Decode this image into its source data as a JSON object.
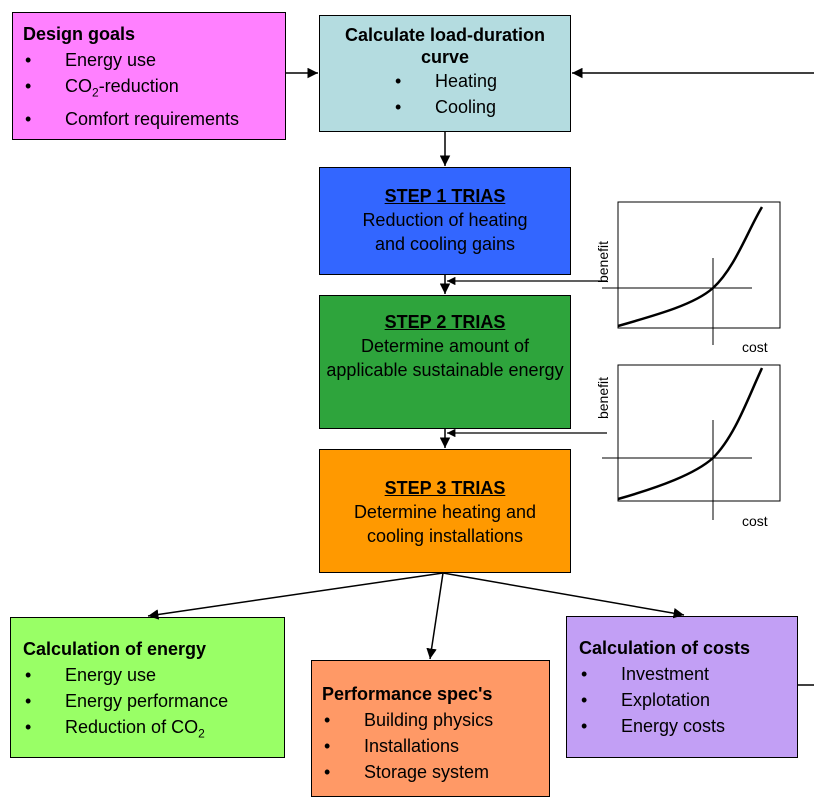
{
  "design_goals": {
    "title": "Design goals",
    "items": [
      "Energy use",
      "CO2-reduction",
      "Comfort requirements"
    ]
  },
  "load_duration": {
    "title": "Calculate load-duration curve",
    "items": [
      "Heating",
      "Cooling"
    ]
  },
  "step1": {
    "title": "STEP 1 TRIAS",
    "text": "Reduction of heating and cooling gains"
  },
  "step2": {
    "title": "STEP 2 TRIAS",
    "text": "Determine amount of applicable sustainable energy"
  },
  "step3": {
    "title": "STEP 3 TRIAS",
    "text": "Determine heating and cooling installations"
  },
  "calc_energy": {
    "title": "Calculation of energy",
    "items": [
      "Energy use",
      "Energy performance",
      "Reduction of CO2"
    ]
  },
  "performance_specs": {
    "title": "Performance spec's",
    "items": [
      "Building physics",
      "Installations",
      "Storage system"
    ]
  },
  "calc_costs": {
    "title": "Calculation of costs",
    "items": [
      "Investment",
      "Explotation",
      "Energy costs"
    ]
  },
  "graphs": {
    "y_label": "benefit",
    "x_label": "cost"
  },
  "colors": {
    "design_goals": "#ff80ff",
    "load_duration": "#b4dce0",
    "step1": "#3366ff",
    "step2": "#2ea43c",
    "step3": "#ff9900",
    "calc_energy": "#99ff66",
    "performance_specs": "#ff9966",
    "calc_costs": "#c29ff5"
  }
}
